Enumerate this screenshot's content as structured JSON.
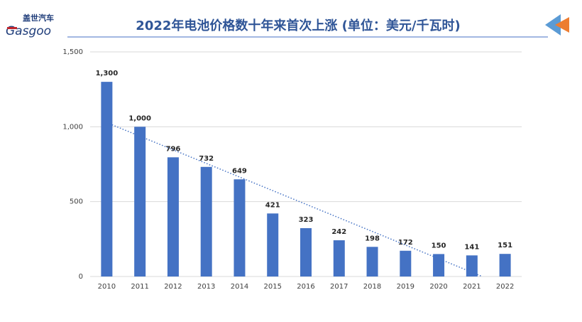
{
  "brand": {
    "name": "盖世汽车",
    "logo": "Gasgoo"
  },
  "chart_data": {
    "type": "bar",
    "title": "2022年电池价格数十年来首次上涨 (单位：美元/千瓦时)",
    "categories": [
      "2010",
      "2011",
      "2012",
      "2013",
      "2014",
      "2015",
      "2016",
      "2017",
      "2018",
      "2019",
      "2020",
      "2021",
      "2022"
    ],
    "values": [
      1300,
      1000,
      796,
      732,
      649,
      421,
      323,
      242,
      198,
      172,
      150,
      141,
      151
    ],
    "value_labels": [
      "1,300",
      "1,000",
      "796",
      "732",
      "649",
      "421",
      "323",
      "242",
      "198",
      "172",
      "150",
      "141",
      "151"
    ],
    "color": "#4472c4",
    "ylim": [
      0,
      1500
    ],
    "yticks": [
      0,
      500,
      {
        "value": 1000,
        "label": "1,000"
      },
      {
        "value": 1500,
        "label": "1,500"
      }
    ],
    "grid": true,
    "trendline": "linear"
  }
}
